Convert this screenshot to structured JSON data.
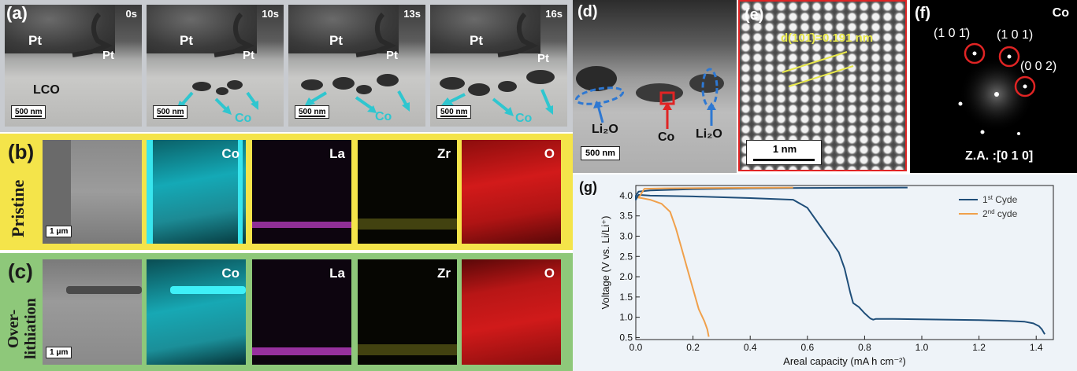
{
  "panel_a": {
    "letter": "(a)",
    "frames": [
      {
        "time": "0s"
      },
      {
        "time": "10s"
      },
      {
        "time": "13s"
      },
      {
        "time": "16s"
      }
    ],
    "pt_label": "Pt",
    "pt_small_label": "Pt",
    "lco_label": "LCO",
    "co_label": "Co",
    "scale_bar": "500 nm"
  },
  "panel_b": {
    "letter": "(b)",
    "side_label": "Pristine",
    "scale_bar": "1 μm",
    "elements": [
      "Co",
      "La",
      "Zr",
      "O"
    ]
  },
  "panel_c": {
    "letter": "(c)",
    "side_label_1": "Over-",
    "side_label_2": "lithiation",
    "scale_bar": "1 μm",
    "elements": [
      "Co",
      "La",
      "Zr",
      "O"
    ]
  },
  "panel_d": {
    "letter": "(d)",
    "li2o_left": "Li₂O",
    "li2o_right": "Li₂O",
    "co_label": "Co",
    "scale_bar": "500 nm"
  },
  "panel_e": {
    "letter": "(e)",
    "d_spacing": "d(101̄)=0.191 nm",
    "scale_bar": "1 nm"
  },
  "panel_f": {
    "letter": "(f)",
    "element": "Co",
    "spot1": "(1 0 1̄)",
    "spot2": "(1 0 1)",
    "spot3": "(0 0 2)",
    "zone_axis": "Z.A. :[0 1 0]"
  },
  "panel_g": {
    "letter": "(g)"
  },
  "colors": {
    "cycle1": "#1f4e79",
    "cycle2": "#f0a04b",
    "cyan": "#2fc6cf",
    "highlight_red": "#e02424",
    "ellipse_blue": "#2e78d2"
  },
  "chart_data": {
    "type": "line",
    "xlabel": "Areal capacity (mA h cm⁻²)",
    "ylabel": "Voltage (V vs. Li/Li⁺)",
    "xlim": [
      0.0,
      1.46
    ],
    "ylim": [
      0.45,
      4.25
    ],
    "xticks": [
      "0.0",
      "0.2",
      "0.4",
      "0.6",
      "0.8",
      "1.0",
      "1.2",
      "1.4"
    ],
    "yticks": [
      "0.5",
      "1.0",
      "1.5",
      "2.0",
      "2.5",
      "3.0",
      "3.5",
      "4.0"
    ],
    "legend_position": "top-right",
    "series": [
      {
        "name": "1st Cyde",
        "label_main": "1",
        "label_sup": "st",
        "label_tail": " Cyde",
        "x": [
          0.95,
          0.6,
          0.4,
          0.2,
          0.05,
          0.01,
          0.0,
          0.0,
          0.01,
          0.05,
          0.2,
          0.4,
          0.55,
          0.6,
          0.64,
          0.68,
          0.71,
          0.73,
          0.75,
          0.76,
          0.78,
          0.8,
          0.82,
          0.83,
          0.84,
          0.9,
          1.0,
          1.1,
          1.2,
          1.3,
          1.36,
          1.39,
          1.41,
          1.42,
          1.43
        ],
        "y": [
          4.2,
          4.19,
          4.18,
          4.16,
          4.13,
          4.1,
          4.0,
          3.9,
          4.02,
          4.0,
          3.98,
          3.94,
          3.9,
          3.7,
          3.3,
          2.9,
          2.6,
          2.2,
          1.6,
          1.35,
          1.25,
          1.1,
          0.97,
          0.94,
          0.96,
          0.96,
          0.95,
          0.94,
          0.93,
          0.91,
          0.89,
          0.85,
          0.78,
          0.7,
          0.58
        ]
      },
      {
        "name": "2nd cyde",
        "label_main": "2",
        "label_sup": "nd",
        "label_tail": " cyde",
        "x": [
          0.55,
          0.3,
          0.1,
          0.03,
          0.015,
          0.012,
          0.01,
          0.02,
          0.05,
          0.09,
          0.12,
          0.14,
          0.16,
          0.18,
          0.2,
          0.22,
          0.24,
          0.25,
          0.255
        ],
        "y": [
          4.2,
          4.19,
          4.18,
          4.17,
          4.0,
          3.98,
          3.95,
          3.94,
          3.9,
          3.8,
          3.6,
          3.2,
          2.7,
          2.2,
          1.7,
          1.2,
          0.9,
          0.7,
          0.52
        ]
      }
    ]
  }
}
